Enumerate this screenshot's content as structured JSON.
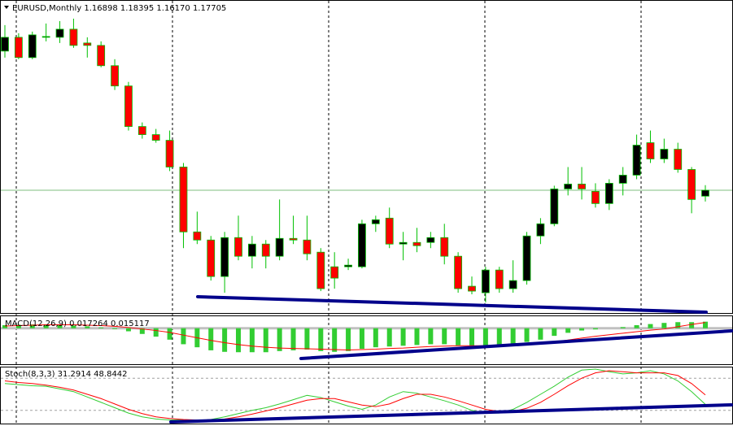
{
  "chart_data": [
    {
      "type": "candlestick",
      "title": "EURUSD,Monthly  1.16898 1.18395 1.16170 1.17705",
      "up_color": "#000000",
      "down_color": "#ff0000",
      "wick_color": "#00c000",
      "bid_color": "#7fbf7f",
      "open": [
        1.3658,
        1.3845,
        1.357,
        1.3845,
        1.3845,
        1.3955,
        1.3768,
        1.3735,
        1.346,
        1.3185,
        1.2635,
        1.2525,
        1.2448,
        1.2085,
        1.1205,
        1.1095,
        1.06,
        1.1128,
        1.0875,
        1.104,
        1.0875,
        1.1117,
        1.1095,
        1.093,
        1.0732,
        1.0732,
        1.0732,
        1.1315,
        1.1392,
        1.104,
        1.1062,
        1.1062,
        1.1128,
        1.0875,
        1.0468,
        1.038,
        1.0688,
        1.0435,
        1.0545,
        1.115,
        1.1315,
        1.1788,
        1.1854,
        1.1755,
        1.159,
        1.1865,
        1.1975,
        1.2415,
        1.2195,
        1.2327,
        1.2052,
        1.16898
      ],
      "high": [
        1.401,
        1.39,
        1.3922,
        1.4032,
        1.4065,
        1.4098,
        1.3845,
        1.379,
        1.3548,
        1.324,
        1.269,
        1.2602,
        1.258,
        1.214,
        1.148,
        1.115,
        1.1205,
        1.1425,
        1.115,
        1.1095,
        1.1645,
        1.1425,
        1.1425,
        1.0985,
        1.093,
        1.0842,
        1.137,
        1.1425,
        1.1535,
        1.1205,
        1.126,
        1.1205,
        1.1315,
        1.093,
        1.06,
        1.0732,
        1.0732,
        1.082,
        1.1205,
        1.1392,
        1.1832,
        1.2085,
        1.2085,
        1.1865,
        1.192,
        1.2085,
        1.2525,
        1.258,
        1.247,
        1.2415,
        1.2085,
        1.18395
      ],
      "low": [
        1.357,
        1.3548,
        1.3548,
        1.379,
        1.3768,
        1.3702,
        1.357,
        1.3438,
        1.313,
        1.258,
        1.247,
        1.2415,
        1.203,
        1.0985,
        1.104,
        1.0545,
        1.038,
        1.082,
        1.071,
        1.071,
        1.082,
        1.104,
        1.082,
        1.0402,
        1.0435,
        1.0688,
        1.071,
        1.1205,
        1.0985,
        1.082,
        1.093,
        1.0985,
        1.0765,
        1.038,
        1.0358,
        1.0248,
        1.038,
        1.038,
        1.049,
        1.104,
        1.1282,
        1.17,
        1.1645,
        1.1535,
        1.1502,
        1.17,
        1.192,
        1.214,
        1.214,
        1.2008,
        1.1458,
        1.1617
      ],
      "close": [
        1.3845,
        1.357,
        1.3878,
        1.3856,
        1.3955,
        1.3735,
        1.3735,
        1.346,
        1.3185,
        1.2635,
        1.2525,
        1.2448,
        1.2085,
        1.1205,
        1.1095,
        1.06,
        1.1128,
        1.0875,
        1.104,
        1.0875,
        1.1117,
        1.1095,
        1.0908,
        1.0435,
        1.0578,
        1.0754,
        1.1315,
        1.137,
        1.104,
        1.1062,
        1.1018,
        1.1128,
        1.0875,
        1.0435,
        1.0402,
        1.0688,
        1.0435,
        1.0545,
        1.115,
        1.1315,
        1.1788,
        1.1854,
        1.1788,
        1.159,
        1.1865,
        1.1975,
        1.2382,
        1.2195,
        1.2327,
        1.2052,
        1.1645,
        1.17705
      ],
      "ylim": [
        1.0105,
        1.434
      ]
    },
    {
      "type": "macd",
      "title": "MACD(12,26,9) 0.017264 0.015117",
      "series": [
        {
          "type": "bar",
          "color": "#32cd32",
          "values": [
            0.008,
            0.009,
            0.01,
            0.01,
            0.009,
            0.007,
            0.005,
            0.002,
            -0.002,
            -0.008,
            -0.015,
            -0.022,
            -0.03,
            -0.042,
            -0.05,
            -0.058,
            -0.062,
            -0.063,
            -0.063,
            -0.063,
            -0.06,
            -0.058,
            -0.056,
            -0.06,
            -0.062,
            -0.06,
            -0.054,
            -0.05,
            -0.048,
            -0.046,
            -0.044,
            -0.042,
            -0.042,
            -0.045,
            -0.047,
            -0.045,
            -0.044,
            -0.042,
            -0.036,
            -0.03,
            -0.02,
            -0.012,
            -0.006,
            -0.003,
            0.0,
            0.003,
            0.008,
            0.011,
            0.014,
            0.016,
            0.016,
            0.017264
          ]
        },
        {
          "type": "line",
          "color": "#ff0000",
          "values": [
            0.006,
            0.007,
            0.008,
            0.009,
            0.009,
            0.009,
            0.008,
            0.007,
            0.005,
            0.002,
            -0.002,
            -0.006,
            -0.011,
            -0.018,
            -0.025,
            -0.032,
            -0.038,
            -0.043,
            -0.047,
            -0.05,
            -0.052,
            -0.053,
            -0.054,
            -0.055,
            -0.056,
            -0.057,
            -0.056,
            -0.055,
            -0.053,
            -0.052,
            -0.05,
            -0.048,
            -0.047,
            -0.046,
            -0.046,
            -0.046,
            -0.045,
            -0.045,
            -0.043,
            -0.04,
            -0.036,
            -0.031,
            -0.026,
            -0.021,
            -0.017,
            -0.013,
            -0.009,
            -0.005,
            -0.002,
            0.004,
            0.01,
            0.015117
          ]
        }
      ],
      "ylim": [
        -0.0945,
        0.0315
      ]
    },
    {
      "type": "line",
      "title": "Stoch(8,3,3) 31.2914 48.8442",
      "series": [
        {
          "color": "#32cd32",
          "values": [
            70,
            68,
            66,
            65,
            60,
            55,
            45,
            35,
            25,
            15,
            8,
            4,
            2,
            2,
            1,
            3,
            8,
            14,
            20,
            25,
            32,
            40,
            48,
            44,
            36,
            28,
            22,
            30,
            45,
            55,
            52,
            45,
            38,
            30,
            20,
            15,
            15,
            22,
            35,
            50,
            65,
            82,
            95,
            97,
            92,
            88,
            90,
            94,
            88,
            75,
            55,
            31.2914
          ]
        },
        {
          "color": "#ff0000",
          "values": [
            75,
            72,
            70,
            67,
            63,
            58,
            50,
            42,
            32,
            22,
            14,
            8,
            5,
            3,
            2,
            2,
            4,
            8,
            13,
            19,
            25,
            32,
            39,
            42,
            42,
            36,
            30,
            27,
            32,
            42,
            50,
            50,
            45,
            38,
            30,
            22,
            18,
            18,
            24,
            35,
            50,
            66,
            80,
            90,
            94,
            92,
            90,
            90,
            90,
            85,
            70,
            48.8442
          ]
        }
      ],
      "ylim": [
        0,
        100
      ],
      "levels": [
        20,
        80
      ]
    }
  ]
}
